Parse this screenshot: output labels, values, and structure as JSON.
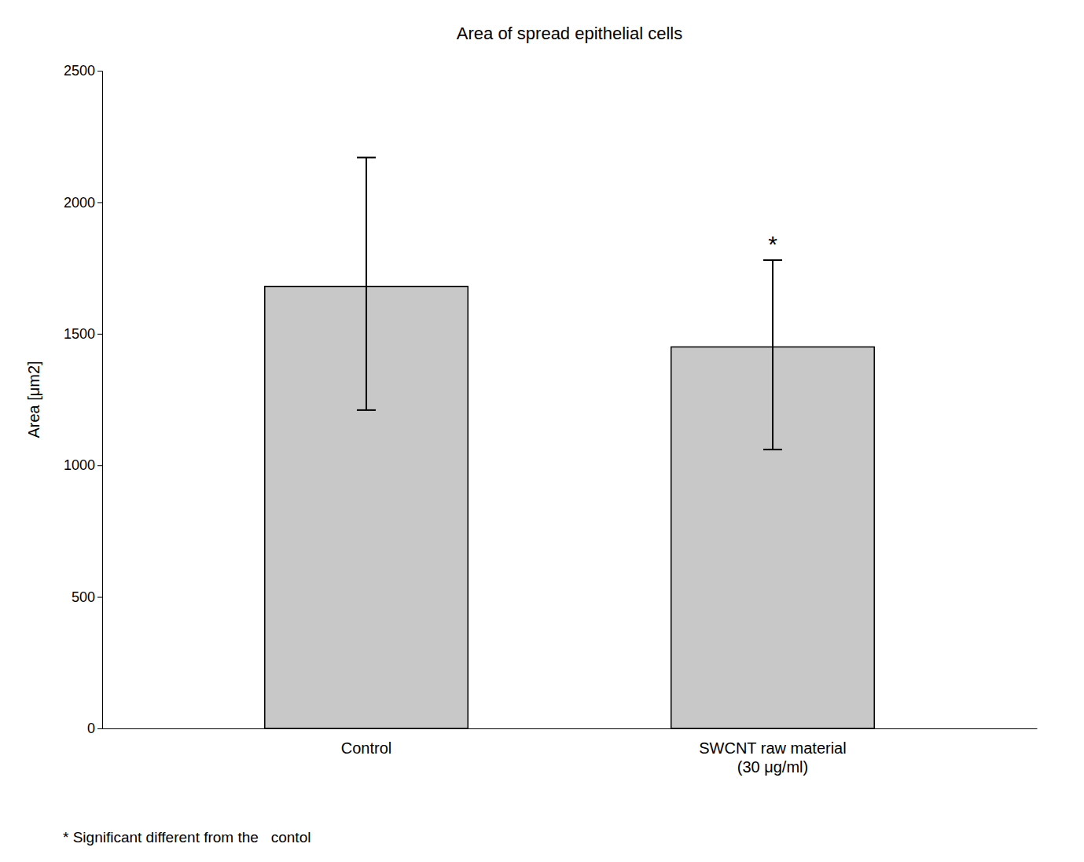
{
  "chart_data": {
    "type": "bar",
    "title": "Area of spread epithelial cells",
    "categories": [
      "Control",
      "SWCNT raw material\n(30 μg/ml)"
    ],
    "values": [
      1680,
      1450
    ],
    "error_lower": [
      470,
      390
    ],
    "error_upper": [
      490,
      330
    ],
    "color": "#c8c8c8",
    "ylabel": "Area [μm2]",
    "ylim": [
      0,
      2500
    ],
    "yticks": [
      0,
      500,
      1000,
      1500,
      2000,
      2500
    ],
    "annotations": [
      {
        "text": "*",
        "x": "SWCNT raw material\n(30 μg/ml)"
      }
    ],
    "footnote": "* Significant different from the   contol",
    "grid": false
  }
}
